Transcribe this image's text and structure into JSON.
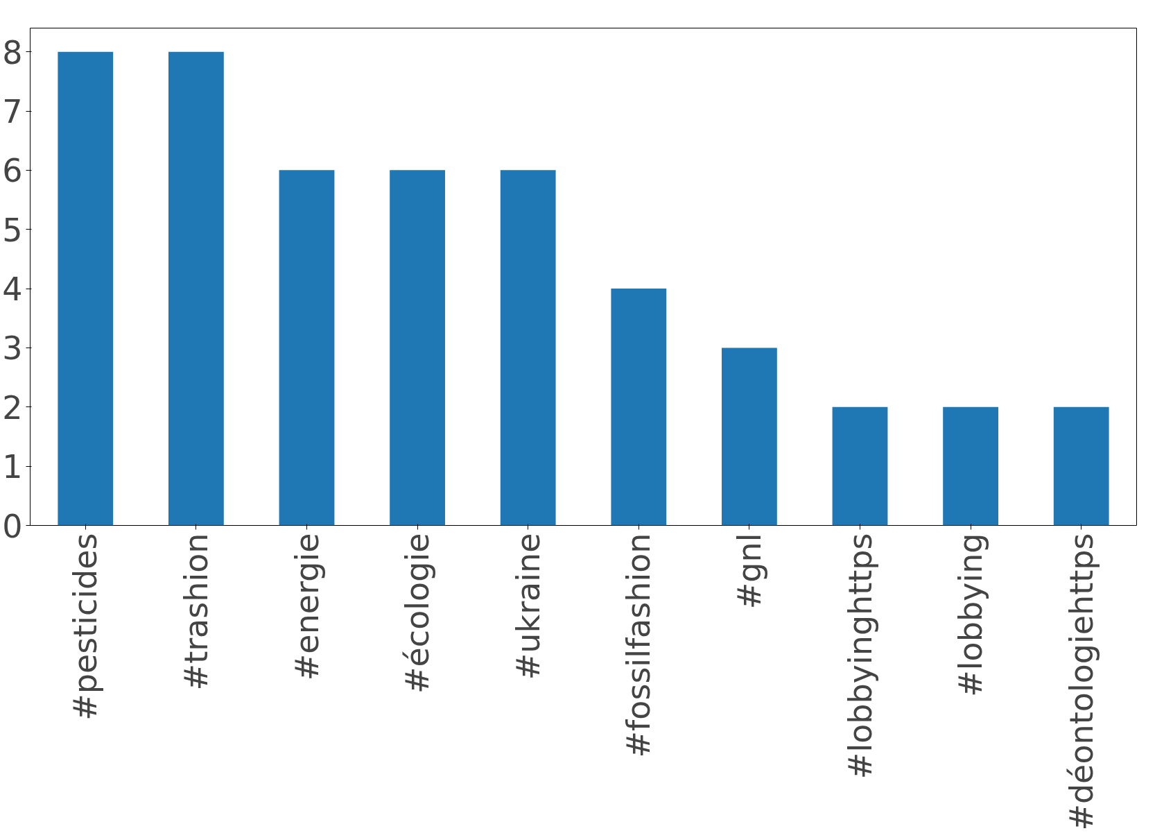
{
  "chart_data": {
    "type": "bar",
    "categories": [
      "#pesticides",
      "#trashion",
      "#energie",
      "#écologie",
      "#ukraine",
      "#fossilfashion",
      "#gnl",
      "#lobbyinghttps",
      "#lobbying",
      "#déontologiehttps"
    ],
    "values": [
      8,
      8,
      6,
      6,
      6,
      4,
      3,
      2,
      2,
      2
    ],
    "color": "#1f77b4",
    "ylim": [
      0,
      8.4
    ],
    "yticks": [
      0,
      1,
      2,
      3,
      4,
      5,
      6,
      7,
      8
    ]
  }
}
